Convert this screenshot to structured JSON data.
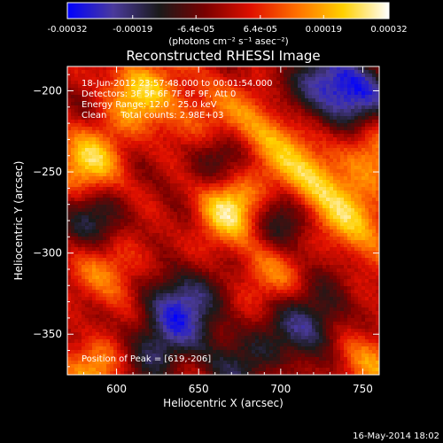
{
  "colorbar": {
    "tick_labels": [
      "-0.00032",
      "-0.00019",
      "-6.4e-05",
      "6.4e-05",
      "0.00019",
      "0.00032"
    ],
    "tick_values": [
      -0.00032,
      -0.00019,
      -6.4e-05,
      6.4e-05,
      0.00019,
      0.00032
    ],
    "range": [
      -0.00032,
      0.00032
    ],
    "unit_label": "(photons cm⁻² s⁻¹ asec⁻²)",
    "colormap": [
      "#0000ff",
      "#4a3a9c",
      "#1a1a1a",
      "#7a0000",
      "#e01000",
      "#ff7000",
      "#ffd000",
      "#ffffff"
    ]
  },
  "chart_data": {
    "type": "heatmap",
    "title": "Reconstructed RHESSI Image",
    "xlabel": "Heliocentric X (arcsec)",
    "ylabel": "Heliocentric Y (arcsec)",
    "xlim": [
      570,
      760
    ],
    "ylim": [
      -375,
      -185
    ],
    "x_ticks": [
      600,
      650,
      700,
      750
    ],
    "y_ticks": [
      -200,
      -250,
      -300,
      -350
    ],
    "x_tick_labels": [
      "600",
      "650",
      "700",
      "750"
    ],
    "y_tick_labels": [
      "−200",
      "−250",
      "−300",
      "−350"
    ],
    "annotations": [
      "18-Jun-2012 23:57:48.000 to 00:01:54.000",
      "Detectors: 3F 5F 6F 7F 8F 9F, Att 0",
      "Energy Range: 12.0 - 25.0 keV",
      "Clean     Total counts: 2.98E+03"
    ],
    "peak_label": "Position of Peak = [619,-206]",
    "peak": [
      619,
      -206
    ],
    "bright_regions": [
      {
        "x": 668,
        "y": -270,
        "intensity": 1.0
      },
      {
        "x": 719,
        "y": -255,
        "intensity": 0.85
      },
      {
        "x": 585,
        "y": -245,
        "intensity": 0.75
      },
      {
        "x": 615,
        "y": -200,
        "intensity": 0.7
      },
      {
        "x": 748,
        "y": -280,
        "intensity": 0.7
      },
      {
        "x": 690,
        "y": -225,
        "intensity": 0.6
      },
      {
        "x": 600,
        "y": -310,
        "intensity": 0.55
      },
      {
        "x": 757,
        "y": -230,
        "intensity": 0.5
      },
      {
        "x": 690,
        "y": -310,
        "intensity": 0.45
      },
      {
        "x": 590,
        "y": -370,
        "intensity": 0.6
      },
      {
        "x": 752,
        "y": -365,
        "intensity": 0.55
      },
      {
        "x": 650,
        "y": -215,
        "intensity": 0.45
      }
    ],
    "dark_regions": [
      {
        "x": 745,
        "y": -205,
        "intensity": -0.9
      },
      {
        "x": 640,
        "y": -330,
        "intensity": -0.85
      },
      {
        "x": 720,
        "y": -345,
        "intensity": -0.7
      },
      {
        "x": 700,
        "y": -280,
        "intensity": -0.6
      },
      {
        "x": 660,
        "y": -245,
        "intensity": -0.6
      },
      {
        "x": 590,
        "y": -280,
        "intensity": -0.55
      },
      {
        "x": 725,
        "y": -195,
        "intensity": -0.6
      },
      {
        "x": 620,
        "y": -360,
        "intensity": -0.6
      },
      {
        "x": 675,
        "y": -365,
        "intensity": -0.5
      }
    ]
  },
  "footer": {
    "date": "16-May-2014 18:02"
  }
}
